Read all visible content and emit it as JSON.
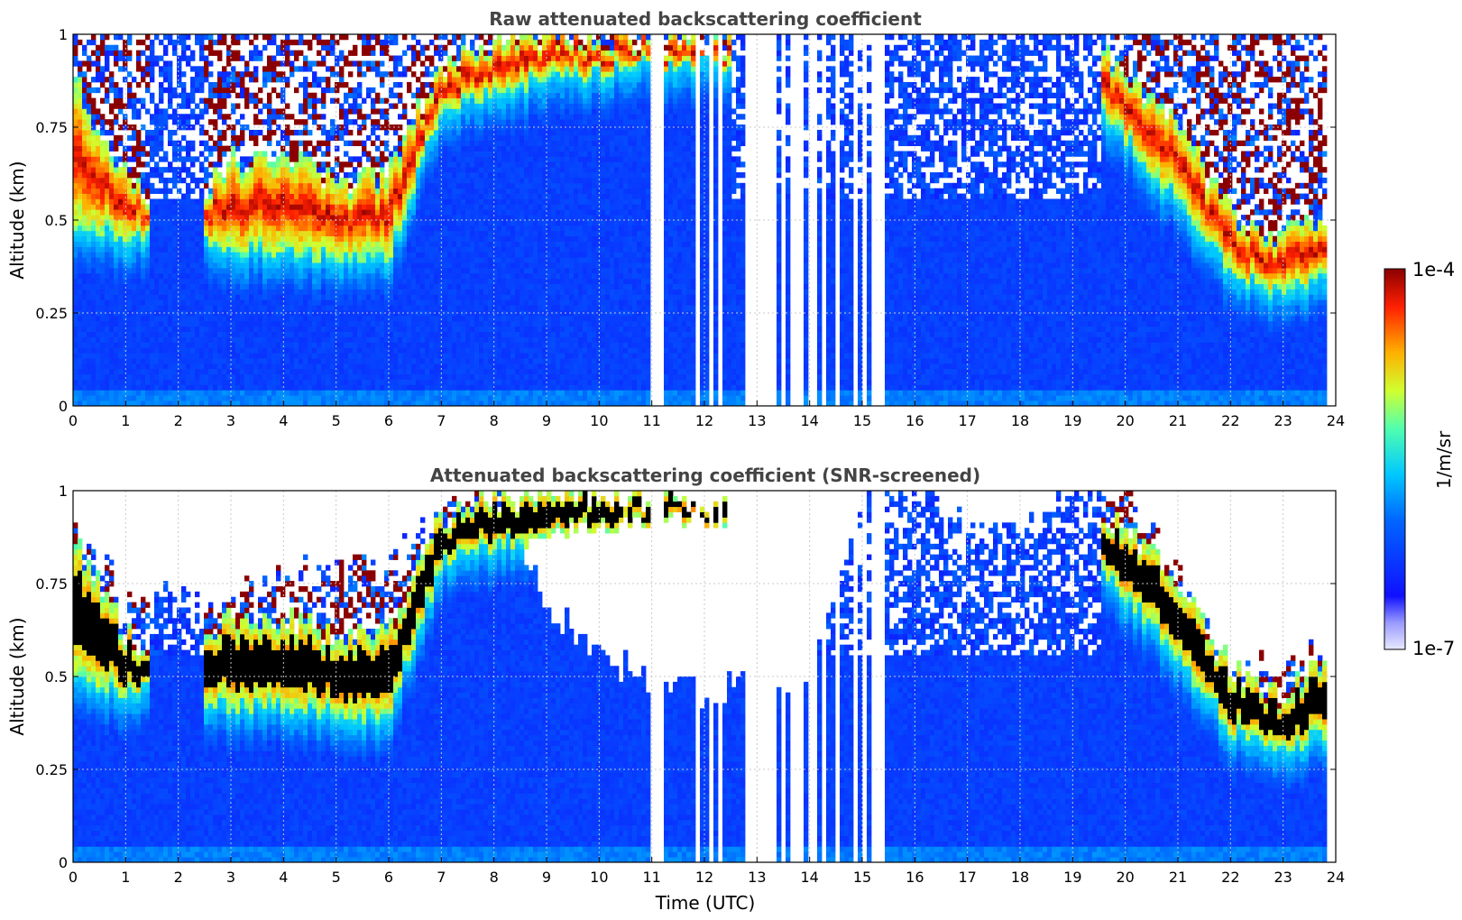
{
  "chart_data": [
    {
      "type": "heatmap",
      "title": "Raw attenuated backscattering coefficient",
      "xlabel": "",
      "ylabel": "Altitude (km)",
      "xlim": [
        0,
        24
      ],
      "ylim": [
        0,
        1
      ],
      "x_ticks": [
        "0",
        "1",
        "2",
        "3",
        "4",
        "5",
        "6",
        "7",
        "8",
        "9",
        "10",
        "11",
        "12",
        "13",
        "14",
        "15",
        "16",
        "17",
        "18",
        "19",
        "20",
        "21",
        "22",
        "23",
        "24"
      ],
      "y_ticks": [
        "0",
        "0.25",
        "0.5",
        "0.75",
        "1"
      ],
      "grid": true,
      "colormap": "jet",
      "color_scale": "log",
      "cloud_top_km_by_hour": [
        0.88,
        0.62,
        0.5,
        0.66,
        0.66,
        0.6,
        0.62,
        0.92,
        0.97,
        0.99,
        0.99,
        0.98,
        0.97,
        0.97,
        0.97,
        0.97,
        0.97,
        0.98,
        0.98,
        0.99,
        0.9,
        0.76,
        0.52,
        0.45,
        0.55
      ],
      "cloud_base_km_by_hour": [
        0.48,
        0.46,
        0.46,
        0.42,
        0.42,
        0.4,
        0.4,
        0.8,
        0.85,
        0.88,
        0.9,
        0.92,
        0.92,
        0.92,
        0.92,
        0.92,
        0.92,
        0.92,
        0.92,
        0.9,
        0.72,
        0.55,
        0.36,
        0.3,
        0.36
      ],
      "cloud_present_by_hour": [
        1,
        1,
        0,
        1,
        1,
        1,
        1,
        1,
        1,
        1,
        1,
        1,
        1,
        0,
        0,
        0,
        0,
        0,
        0,
        0,
        1,
        1,
        1,
        1,
        1
      ],
      "missing_data_hours": [
        11.05,
        11.2,
        11.85,
        12.15,
        12.3,
        12.8,
        12.95,
        13.1,
        13.3,
        13.5,
        13.7,
        13.85,
        14.05,
        14.25,
        14.55,
        14.85,
        15.05,
        15.2,
        15.35
      ]
    },
    {
      "type": "heatmap",
      "title": "Attenuated backscattering coefficient (SNR-screened)",
      "xlabel": "Time (UTC)",
      "ylabel": "Altitude (km)",
      "xlim": [
        0,
        24
      ],
      "ylim": [
        0,
        1
      ],
      "x_ticks": [
        "0",
        "1",
        "2",
        "3",
        "4",
        "5",
        "6",
        "7",
        "8",
        "9",
        "10",
        "11",
        "12",
        "13",
        "14",
        "15",
        "16",
        "17",
        "18",
        "19",
        "20",
        "21",
        "22",
        "23",
        "24"
      ],
      "y_ticks": [
        "0",
        "0.25",
        "0.5",
        "0.75",
        "1"
      ],
      "grid": true,
      "colormap": "jet",
      "color_scale": "log",
      "screened_top_km_by_hour": [
        0.92,
        0.7,
        0.72,
        0.7,
        0.78,
        0.8,
        0.78,
        1.0,
        1.0,
        0.7,
        0.55,
        0.5,
        0.45,
        0.5,
        0.5,
        1.0,
        1.0,
        0.9,
        0.9,
        1.0,
        1.0,
        0.78,
        0.52,
        0.52,
        0.58
      ],
      "saturated_layer": true
    }
  ],
  "colorbar": {
    "label": "1/m/sr",
    "max_label": "1e-4",
    "min_label": "1e-7"
  },
  "colors": {
    "title": "#444444",
    "grid": "#c8c8c8",
    "background": "#ffffff"
  }
}
